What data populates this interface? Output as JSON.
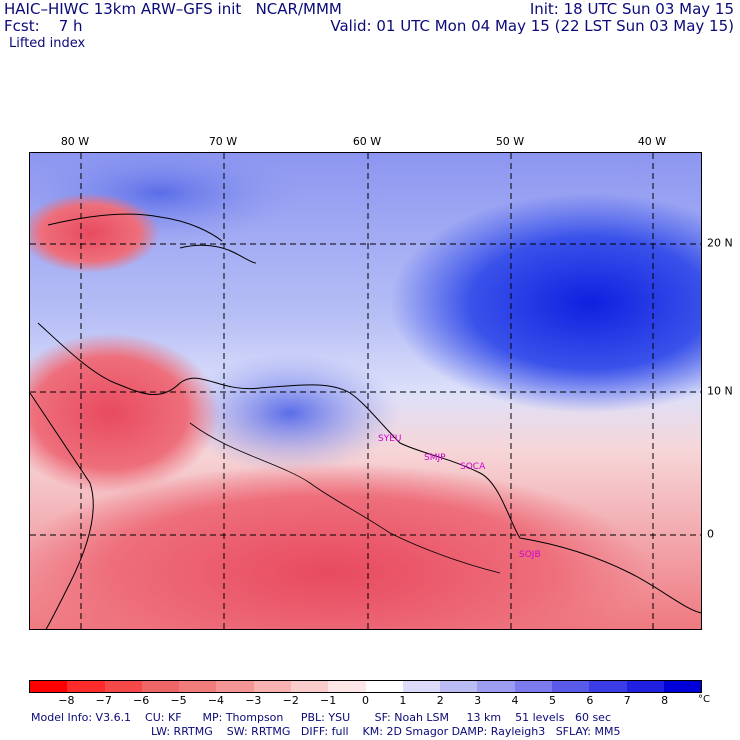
{
  "header": {
    "title": "HAIC–HIWC 13km ARW–GFS init   NCAR/MMM",
    "init": "Init: 18 UTC Sun 03 May 15",
    "forecast": "Fcst:    7 h",
    "valid": "Valid: 01 UTC Mon 04 May 15 (22 LST Sun 03 May 15)",
    "field": "Lifted index"
  },
  "map": {
    "longitude_labels": [
      "80 W",
      "70 W",
      "60 W",
      "50 W",
      "40 W"
    ],
    "latitude_labels": [
      "20 N",
      "10 N",
      "0"
    ],
    "stations": [
      "SYEU",
      "SMJP",
      "SOCA",
      "SOJB"
    ],
    "colors": {
      "negative": "#e84a5f",
      "positive": "#2a3fe0",
      "coast": "#000000",
      "grid": "#000000",
      "station": "#d000d0"
    }
  },
  "colorbar": {
    "labels": [
      "−8",
      "−7",
      "−6",
      "−5",
      "−4",
      "−3",
      "−2",
      "−1",
      "0",
      "1",
      "2",
      "3",
      "4",
      "5",
      "6",
      "7",
      "8"
    ],
    "unit": "°C",
    "colors": [
      "#ff0000",
      "#ff2b2b",
      "#f54848",
      "#ef6666",
      "#f07c7c",
      "#f49696",
      "#f8b2b2",
      "#fbcccc",
      "#fde6e6",
      "#ffffff",
      "#dcdcfa",
      "#bcbcf5",
      "#9c9cf0",
      "#7c7cee",
      "#5a5aea",
      "#3c3ce6",
      "#2020e0",
      "#0000d8"
    ]
  },
  "model_info": {
    "line1": "Model Info: V3.6.1    CU: KF      MP: Thompson     PBL: YSU       SF: Noah LSM     13 km    51 levels   60 sec",
    "line2": "LW: RRTMG    SW: RRTMG   DIFF: full    KM: 2D Smagor DAMP: Rayleigh3   SFLAY: MM5"
  }
}
